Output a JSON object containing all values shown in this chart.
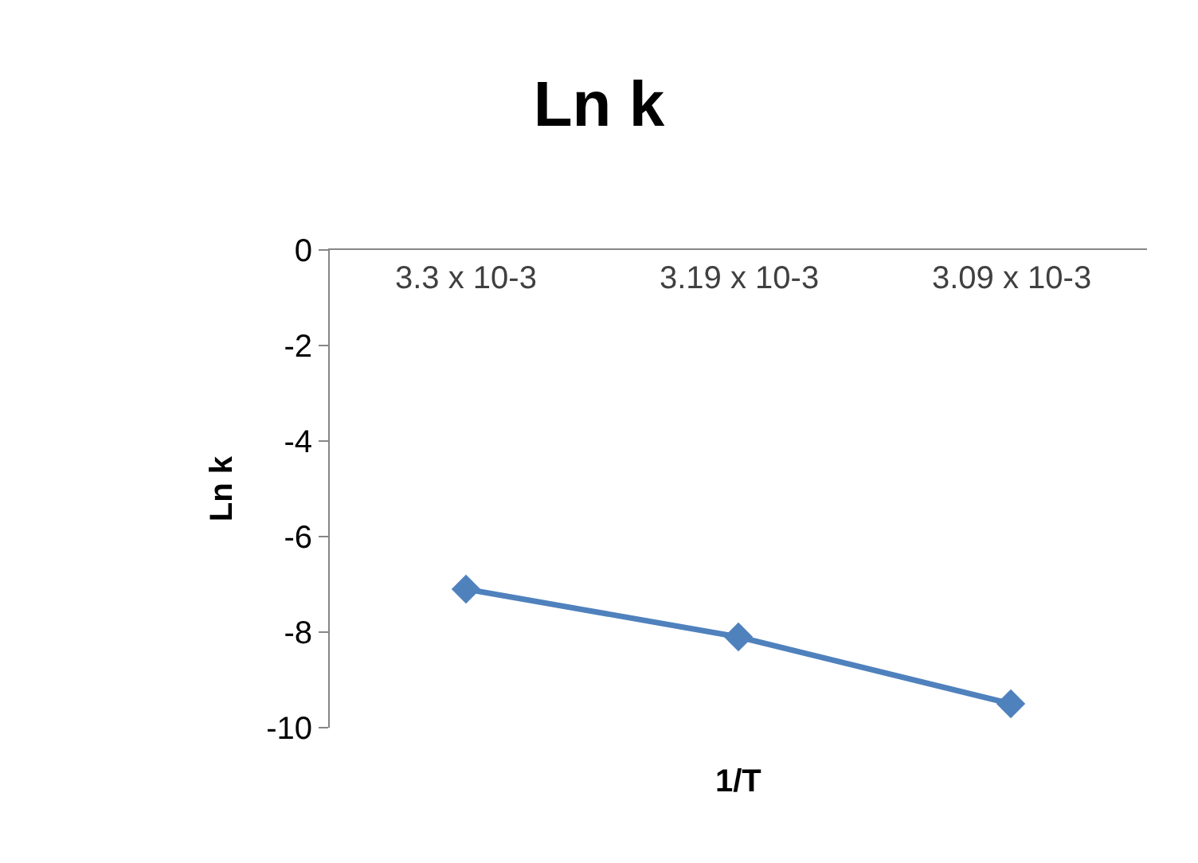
{
  "chart_data": {
    "type": "line",
    "title": "Ln k",
    "xlabel": "1/T",
    "ylabel": "Ln k",
    "categories": [
      "3.3 x 10-3",
      "3.19 x 10-3",
      "3.09 x 10-3"
    ],
    "series": [
      {
        "color": "#4f81bd",
        "values": [
          -7.1,
          -8.1,
          -9.5
        ]
      }
    ],
    "ylim": [
      -10,
      0
    ],
    "yticks": [
      0,
      -2,
      -4,
      -6,
      -8,
      -10
    ],
    "marker": "diamond",
    "line_style": "solid",
    "legend": false
  }
}
